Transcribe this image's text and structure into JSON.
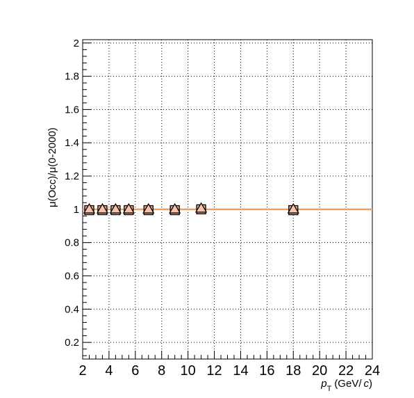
{
  "chart_data": {
    "type": "scatter",
    "title": "",
    "xlabel": {
      "symbol": "p",
      "subscript": "T",
      "units_prefix": "(GeV/",
      "units_var": "c",
      "units_suffix": ")"
    },
    "ylabel": "μ(Occ)/μ(0-2000)",
    "xlim": [
      2,
      24
    ],
    "ylim": [
      0.1,
      2.02
    ],
    "xticks": [
      2,
      4,
      6,
      8,
      10,
      12,
      14,
      16,
      18,
      20,
      22,
      24
    ],
    "xtick_labels": [
      "2",
      "4",
      "6",
      "8",
      "10",
      "12",
      "14",
      "16",
      "18",
      "20",
      "22",
      "24"
    ],
    "yticks": [
      0.2,
      0.4,
      0.6,
      0.8,
      1.0,
      1.2,
      1.4,
      1.6,
      1.8,
      2.0
    ],
    "ytick_labels": [
      "0.2",
      "0.4",
      "0.6",
      "0.8",
      "1",
      "1.2",
      "1.4",
      "1.6",
      "1.8",
      "2"
    ],
    "grid": true,
    "series": [
      {
        "marker": "square",
        "color": "#e8a888",
        "x": [
          2.5,
          3.5,
          4.5,
          5.5,
          7.0,
          9.0,
          11.0,
          18.0
        ],
        "y": [
          0.995,
          0.995,
          0.995,
          0.995,
          0.995,
          0.995,
          1.0,
          0.995
        ]
      },
      {
        "marker": "triangle",
        "color": "#f5c4a8",
        "x": [
          2.5,
          3.5,
          4.5,
          5.5,
          7.0,
          9.0,
          11.0,
          18.0
        ],
        "y": [
          1.0,
          1.0,
          1.0,
          1.0,
          1.0,
          1.0,
          1.005,
          1.0
        ]
      }
    ],
    "reference_line": {
      "y": 1.0,
      "color": "#f0a060"
    }
  }
}
